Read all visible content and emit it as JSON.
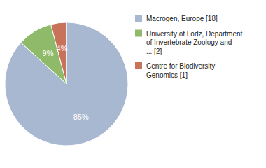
{
  "chart_data": {
    "type": "pie",
    "categories": [
      "Macrogen, Europe [18]",
      "University of Lodz, Department\nof Invertebrate Zoology and\n... [2]",
      "Centre for Biodiversity\nGenomics [1]"
    ],
    "values": [
      85,
      9,
      4
    ],
    "value_labels": [
      "85%",
      "9%",
      "4%"
    ],
    "colors": [
      "#a8b8d0",
      "#8fba6a",
      "#c9725a"
    ],
    "data_labels": true,
    "legend": "right"
  }
}
